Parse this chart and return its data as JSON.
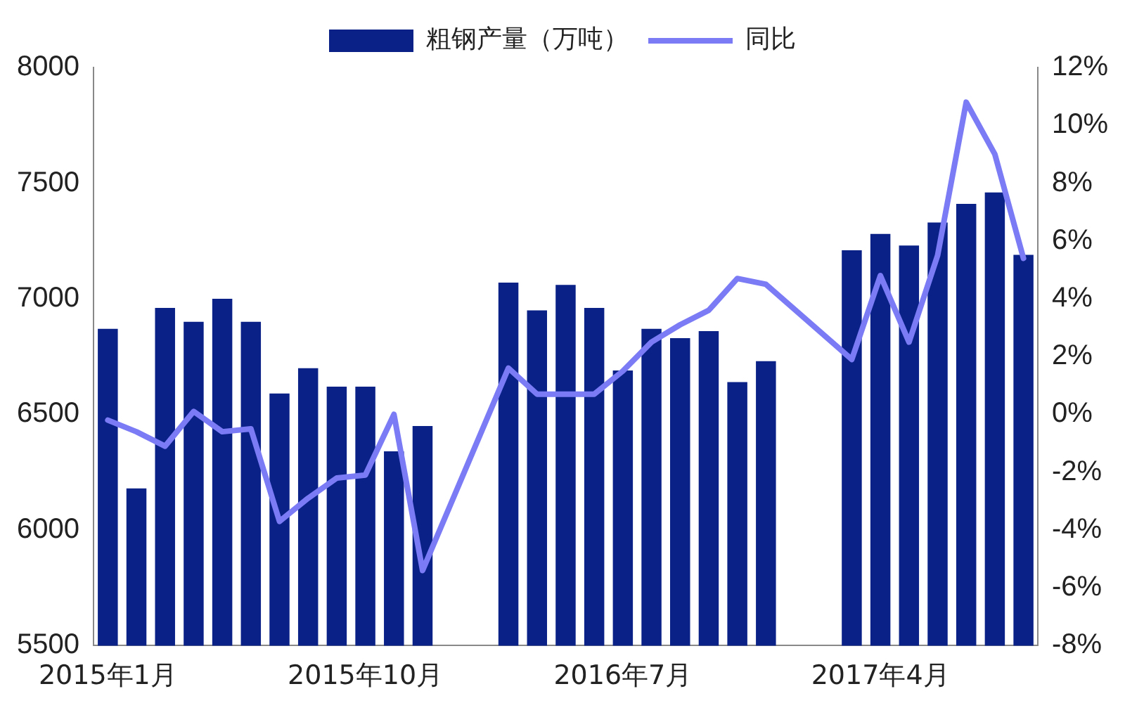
{
  "chart_data": {
    "type": "bar",
    "categories": [
      "2015年1月",
      null,
      null,
      null,
      null,
      null,
      null,
      null,
      null,
      "2015年10月",
      null,
      null,
      null,
      null,
      null,
      null,
      null,
      null,
      "2016年7月",
      null,
      null,
      null,
      null,
      null,
      null,
      null,
      null,
      "2017年4月",
      null,
      null,
      null,
      null,
      null
    ],
    "series": [
      {
        "name": "粗钢产量（万吨）",
        "color": "#0a2288",
        "values": [
          6870,
          6180,
          6960,
          6900,
          7000,
          6900,
          6590,
          6700,
          6620,
          6620,
          6340,
          6450,
          null,
          null,
          7070,
          6950,
          7060,
          6960,
          6690,
          6870,
          6830,
          6860,
          6640,
          6730,
          null,
          null,
          7210,
          7280,
          7230,
          7330,
          7410,
          7460,
          7190
        ]
      },
      {
        "name": "同比",
        "type": "line",
        "axis": "y2",
        "color": "#7b7bf5",
        "values": [
          -0.2,
          -0.6,
          -1.1,
          0.1,
          -0.6,
          -0.5,
          -3.7,
          -2.9,
          -2.2,
          -2.1,
          0.0,
          -5.4,
          null,
          null,
          1.6,
          0.7,
          0.7,
          0.7,
          1.5,
          2.5,
          3.1,
          3.6,
          4.7,
          4.5,
          null,
          null,
          1.9,
          4.8,
          2.5,
          5.5,
          10.8,
          9.0,
          5.4
        ]
      }
    ],
    "ylim": [
      5500,
      8000
    ],
    "yticks": [
      5500,
      6000,
      6500,
      7000,
      7500,
      8000
    ],
    "y2lim": [
      -8,
      12
    ],
    "y2ticks": [
      {
        "value": -8,
        "label": "-8%"
      },
      {
        "value": -6,
        "label": "-6%"
      },
      {
        "value": -4,
        "label": "-4%"
      },
      {
        "value": -2,
        "label": "-2%"
      },
      {
        "value": 0,
        "label": "0%"
      },
      {
        "value": 2,
        "label": "2%"
      },
      {
        "value": 4,
        "label": "4%"
      },
      {
        "value": 6,
        "label": "6%"
      },
      {
        "value": 8,
        "label": "8%"
      },
      {
        "value": 10,
        "label": "10%"
      },
      {
        "value": 12,
        "label": "12%"
      }
    ],
    "grid": false,
    "legend": "top",
    "marker": "none",
    "line_style": "solid"
  }
}
